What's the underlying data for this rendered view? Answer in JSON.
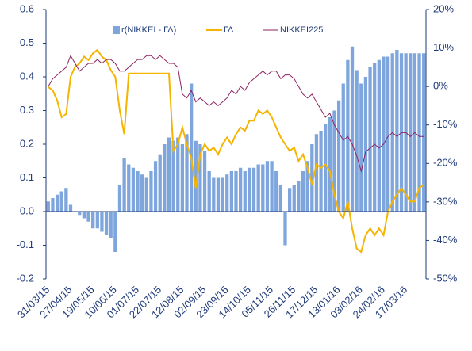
{
  "chart_data": {
    "type": "bar",
    "categories": [
      "31/03/15",
      null,
      null,
      null,
      null,
      "27/04/15",
      null,
      null,
      null,
      null,
      "19/05/15",
      null,
      null,
      null,
      null,
      "10/06/15",
      null,
      null,
      null,
      null,
      "01/07/15",
      null,
      null,
      null,
      null,
      "22/07/15",
      null,
      null,
      null,
      null,
      "12/08/15",
      null,
      null,
      null,
      null,
      "02/09/15",
      null,
      null,
      null,
      null,
      "23/09/15",
      null,
      null,
      null,
      null,
      "14/10/15",
      null,
      null,
      null,
      null,
      "05/11/15",
      null,
      null,
      null,
      null,
      "26/11/15",
      null,
      null,
      null,
      null,
      "17/12/15",
      null,
      null,
      null,
      null,
      "13/01/16",
      null,
      null,
      null,
      null,
      "03/02/16",
      null,
      null,
      null,
      null,
      "24/02/16",
      null,
      null,
      null,
      null,
      "17/03/16",
      null,
      null,
      null,
      null
    ],
    "series": [
      {
        "name": "r(NIKKEI - ΓΔ)",
        "type": "bar",
        "color": "#7ea6dd",
        "axis": "y",
        "values": [
          0.03,
          0.04,
          0.05,
          0.06,
          0.07,
          0.02,
          0.0,
          -0.01,
          -0.02,
          -0.03,
          -0.05,
          -0.05,
          -0.06,
          -0.07,
          -0.08,
          -0.12,
          0.08,
          0.16,
          0.14,
          0.13,
          0.12,
          0.11,
          0.1,
          0.12,
          0.15,
          0.17,
          0.2,
          0.22,
          0.21,
          0.22,
          0.2,
          0.23,
          0.38,
          0.21,
          0.2,
          0.18,
          0.12,
          0.1,
          0.1,
          0.1,
          0.11,
          0.12,
          0.12,
          0.13,
          0.12,
          0.13,
          0.13,
          0.14,
          0.14,
          0.15,
          0.15,
          0.12,
          0.08,
          -0.1,
          0.07,
          0.08,
          0.09,
          0.12,
          0.15,
          0.2,
          0.23,
          0.24,
          0.26,
          0.28,
          0.3,
          0.33,
          0.38,
          0.45,
          0.49,
          0.42,
          0.38,
          0.4,
          0.43,
          0.44,
          0.45,
          0.46,
          0.46,
          0.47,
          0.48,
          0.47,
          0.47,
          0.47,
          0.47,
          0.47,
          0.47
        ]
      },
      {
        "name": "ΓΔ",
        "type": "line",
        "color": "#f5b400",
        "axis": "y",
        "values": [
          0.37,
          0.36,
          0.33,
          0.28,
          0.29,
          0.4,
          0.43,
          0.44,
          0.46,
          0.45,
          0.47,
          0.48,
          0.46,
          0.45,
          0.42,
          0.4,
          0.3,
          0.23,
          0.41,
          0.41,
          0.41,
          0.41,
          0.41,
          0.41,
          0.41,
          0.41,
          0.41,
          0.41,
          0.18,
          0.2,
          0.25,
          0.2,
          0.16,
          0.07,
          0.17,
          0.2,
          0.18,
          0.19,
          0.17,
          0.2,
          0.22,
          0.2,
          0.23,
          0.25,
          0.24,
          0.27,
          0.27,
          0.3,
          0.29,
          0.3,
          0.28,
          0.25,
          0.22,
          0.2,
          0.18,
          0.19,
          0.15,
          0.17,
          0.13,
          0.08,
          0.14,
          0.13,
          0.14,
          0.12,
          0.05,
          0.0,
          -0.02,
          0.03,
          -0.05,
          -0.11,
          -0.12,
          -0.07,
          -0.05,
          -0.07,
          -0.05,
          -0.07,
          0.0,
          0.03,
          0.05,
          0.07,
          0.05,
          0.03,
          0.03,
          0.07,
          0.08
        ]
      },
      {
        "name": "NIKKEI225",
        "type": "line",
        "color": "#8c2260",
        "axis": "y2",
        "values": [
          0,
          2,
          3,
          4,
          5,
          8,
          6,
          4,
          5,
          6,
          6,
          7,
          6,
          7,
          7,
          6,
          4,
          4,
          5,
          6,
          7,
          7,
          8,
          8,
          7,
          8,
          7,
          6,
          6,
          5,
          -2,
          -3,
          -1,
          -4,
          -3,
          -4,
          -5,
          -4,
          -5,
          -4,
          -3,
          -1,
          -2,
          0,
          -1,
          1,
          2,
          3,
          4,
          3,
          4,
          4,
          2,
          3,
          3,
          2,
          0,
          -2,
          -3,
          -2,
          -4,
          -6,
          -8,
          -7,
          -10,
          -12,
          -14,
          -13,
          -15,
          -18,
          -22,
          -17,
          -16,
          -15,
          -16,
          -15,
          -13,
          -12,
          -13,
          -12,
          -12,
          -13,
          -12,
          -13,
          -13
        ]
      }
    ],
    "ylim": [
      -0.2,
      0.6
    ],
    "yticks": [
      {
        "value": -0.2,
        "label": "-0.2"
      },
      {
        "value": -0.1,
        "label": "-0.1"
      },
      {
        "value": 0,
        "label": "0.0"
      },
      {
        "value": 0.1,
        "label": "0.1"
      },
      {
        "value": 0.2,
        "label": "0.2"
      },
      {
        "value": 0.3,
        "label": "0.3"
      },
      {
        "value": 0.4,
        "label": "0.4"
      },
      {
        "value": 0.5,
        "label": "0.5"
      },
      {
        "value": 0.6,
        "label": "0.6"
      }
    ],
    "y2lim": [
      -50,
      20
    ],
    "y2ticks": [
      {
        "value": -50,
        "label": "-50%"
      },
      {
        "value": -40,
        "label": "-40%"
      },
      {
        "value": -30,
        "label": "-30%"
      },
      {
        "value": -20,
        "label": "-20%"
      },
      {
        "value": -10,
        "label": "-10%"
      },
      {
        "value": 0,
        "label": "0%"
      },
      {
        "value": 10,
        "label": "10%"
      },
      {
        "value": 20,
        "label": "20%"
      }
    ],
    "legend": "top"
  }
}
